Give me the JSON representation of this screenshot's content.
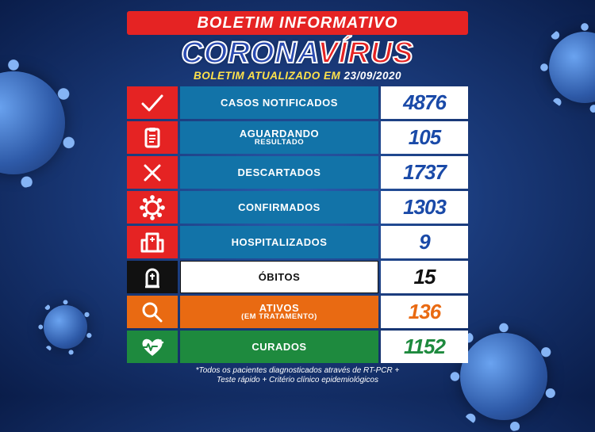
{
  "header": {
    "title_red": "BOLETIM INFORMATIVO",
    "corona_part1": "CORONA",
    "corona_part2": "VÍRUS",
    "subtitle_yellow": "BOLETIM ATUALIZADO EM",
    "subtitle_date": " 23/09/2020"
  },
  "colors": {
    "red": "#e52323",
    "blue": "#1273a8",
    "black": "#111111",
    "orange": "#e96a12",
    "green": "#1e8a3e",
    "value_blue": "#1a4aa8"
  },
  "rows": [
    {
      "icon": "check",
      "icon_bg_key": "red",
      "label": "CASOS NOTIFICADOS",
      "sublabel": "",
      "label_bg_key": "blue",
      "value": "4876",
      "value_color_key": "value_blue"
    },
    {
      "icon": "clipboard",
      "icon_bg_key": "red",
      "label": "AGUARDANDO",
      "sublabel": "RESULTADO",
      "label_bg_key": "blue",
      "value": "105",
      "value_color_key": "value_blue"
    },
    {
      "icon": "cross",
      "icon_bg_key": "red",
      "label": "DESCARTADOS",
      "sublabel": "",
      "label_bg_key": "blue",
      "value": "1737",
      "value_color_key": "value_blue"
    },
    {
      "icon": "virus",
      "icon_bg_key": "red",
      "label": "CONFIRMADOS",
      "sublabel": "",
      "label_bg_key": "blue",
      "value": "1303",
      "value_color_key": "value_blue"
    },
    {
      "icon": "hospital",
      "icon_bg_key": "red",
      "label": "HOSPITALIZADOS",
      "sublabel": "",
      "label_bg_key": "blue",
      "value": "9",
      "value_color_key": "value_blue"
    },
    {
      "icon": "tomb",
      "icon_bg_key": "black",
      "label": "ÓBITOS",
      "sublabel": "",
      "label_bg_key": "white",
      "value": "15",
      "value_color_key": "black",
      "label_text_black": true
    },
    {
      "icon": "magnifier",
      "icon_bg_key": "orange",
      "label": "ATIVOS",
      "sublabel": "(EM TRATAMENTO)",
      "label_bg_key": "orange",
      "value": "136",
      "value_color_key": "orange"
    },
    {
      "icon": "heart",
      "icon_bg_key": "green",
      "label": "CURADOS",
      "sublabel": "",
      "label_bg_key": "green",
      "value": "1152",
      "value_color_key": "green"
    }
  ],
  "footnote_line1": "*Todos os pacientes diagnosticados através de RT-PCR +",
  "footnote_line2": "Teste rápido + Critério clínico epidemiológicos"
}
